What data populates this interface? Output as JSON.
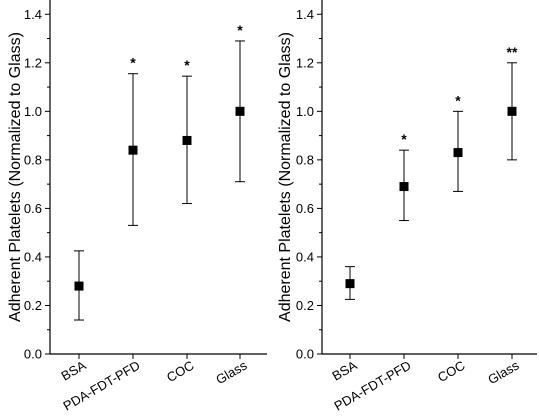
{
  "chart_data": [
    {
      "type": "scatter",
      "title": "",
      "xlabel": "",
      "ylabel": "Adherent Platelets (Normalized to Glass)",
      "ylim": [
        0,
        1.5
      ],
      "yticks": [
        "0.0",
        "0.2",
        "0.4",
        "0.6",
        "0.8",
        "1.0",
        "1.2",
        "1.4"
      ],
      "categories": [
        "BSA",
        "PDA-FDT-PFD",
        "COC",
        "Glass"
      ],
      "values": [
        0.28,
        0.84,
        0.88,
        1.0
      ],
      "error_low": [
        0.14,
        0.53,
        0.62,
        0.71
      ],
      "error_high": [
        0.425,
        1.155,
        1.145,
        1.29
      ],
      "annotations": [
        "",
        "*",
        "*",
        "*"
      ],
      "grid": false,
      "marker": "square"
    },
    {
      "type": "scatter",
      "title": "",
      "xlabel": "",
      "ylabel": "Adherent Platelets (Normalized to Glass)",
      "ylim": [
        0,
        1.5
      ],
      "yticks": [
        "0.0",
        "0.2",
        "0.4",
        "0.6",
        "0.8",
        "1.0",
        "1.2",
        "1.4"
      ],
      "categories": [
        "BSA",
        "PDA-FDT-PFD",
        "COC",
        "Glass"
      ],
      "values": [
        0.29,
        0.69,
        0.83,
        1.0
      ],
      "error_low": [
        0.225,
        0.55,
        0.67,
        0.8
      ],
      "error_high": [
        0.36,
        0.84,
        1.0,
        1.2
      ],
      "annotations": [
        "",
        "*",
        "*",
        "**"
      ],
      "grid": false,
      "marker": "square"
    }
  ]
}
